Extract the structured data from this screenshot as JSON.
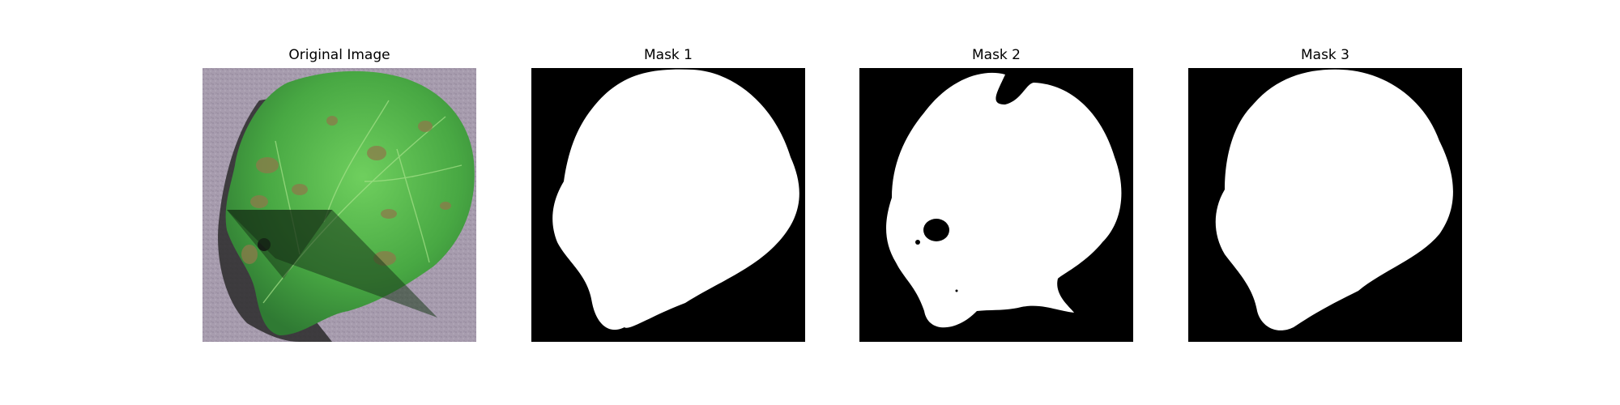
{
  "figure": {
    "panels": [
      {
        "title": "Original Image",
        "content": "leaf photograph"
      },
      {
        "title": "Mask 1",
        "content": "binary segmentation mask"
      },
      {
        "title": "Mask 2",
        "content": "binary segmentation mask"
      },
      {
        "title": "Mask 3",
        "content": "binary segmentation mask"
      }
    ]
  },
  "colors": {
    "background": "#ffffff",
    "mask_bg": "#000000",
    "mask_fg": "#ffffff",
    "leaf_green": "#4fb04a",
    "ground": "#a79cae",
    "shadow": "#2a2a2a"
  }
}
